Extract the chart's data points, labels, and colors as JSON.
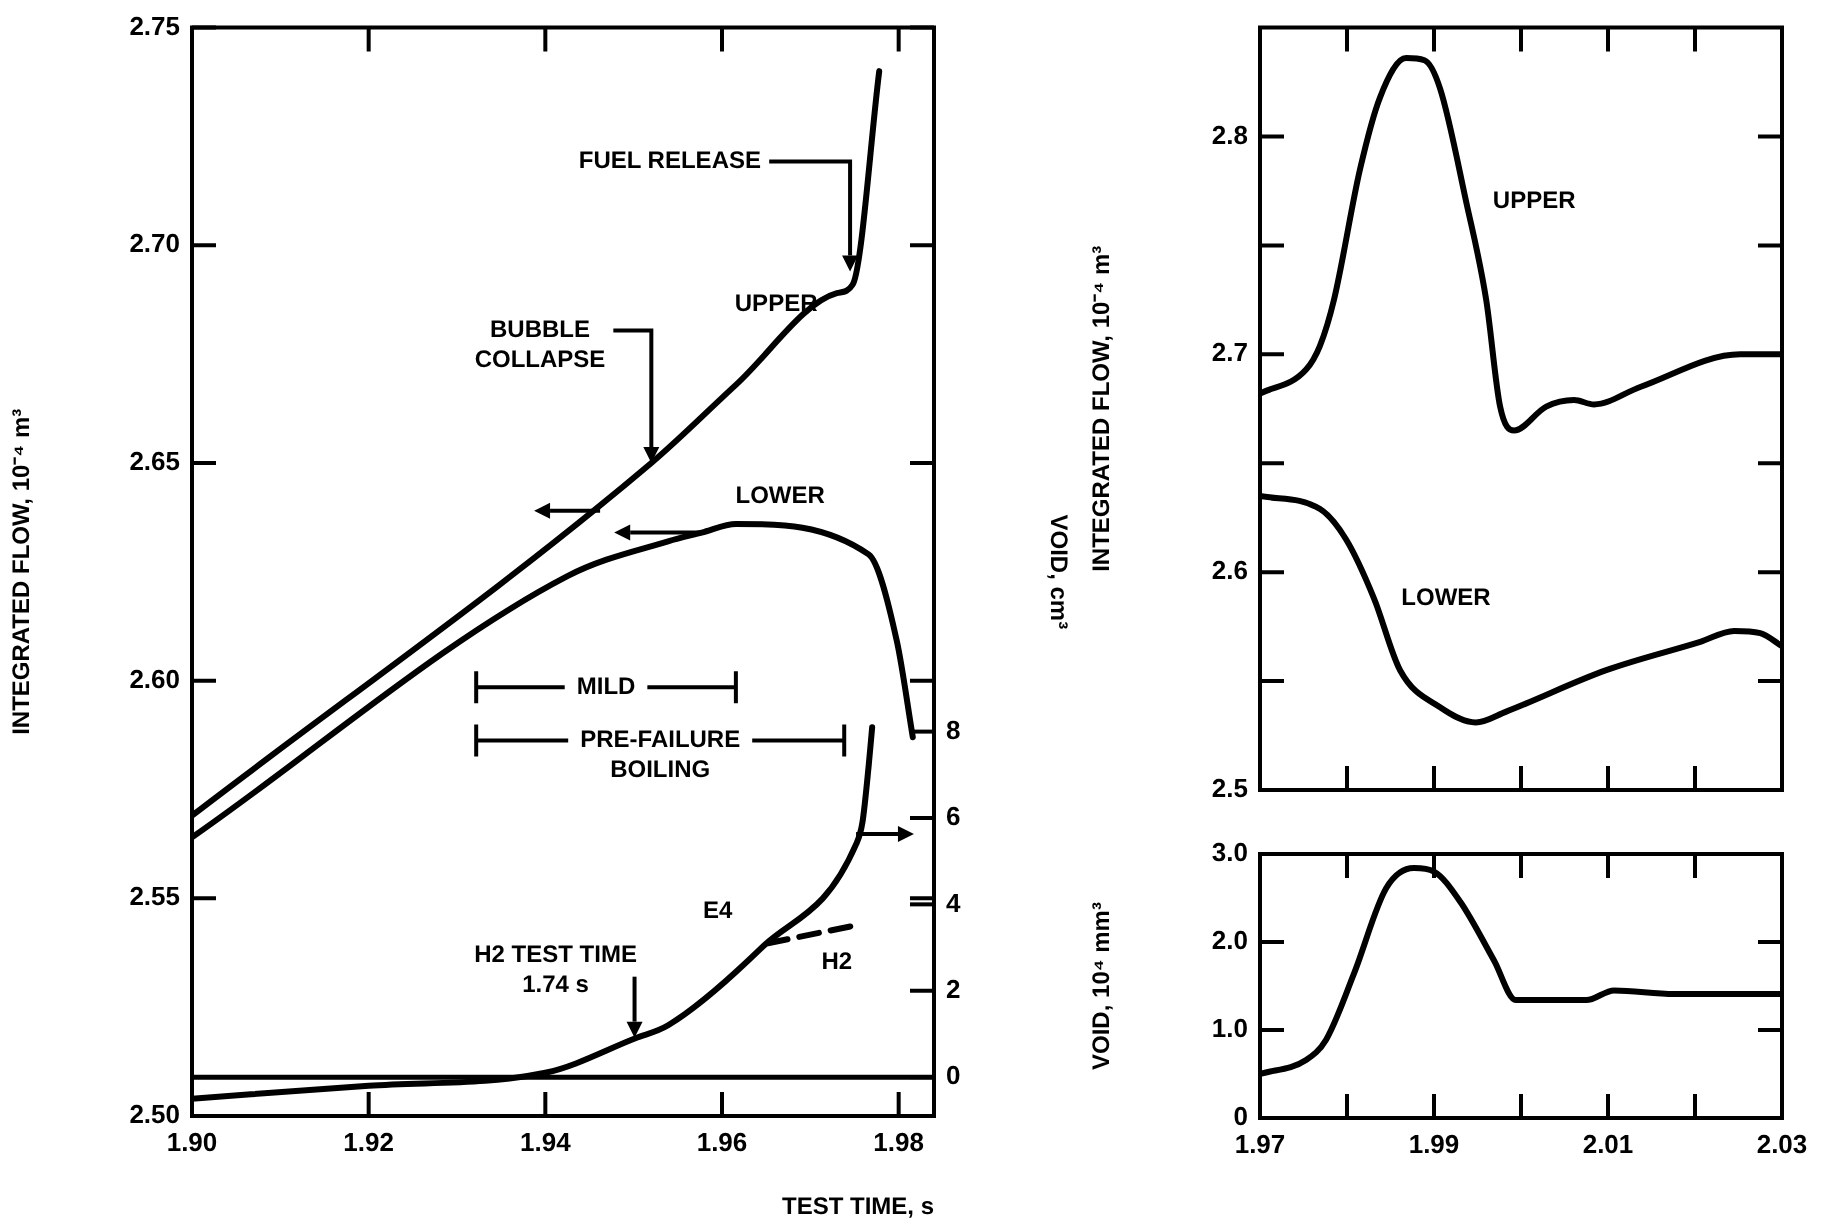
{
  "chart_data": [
    {
      "type": "line",
      "xlabel": "TEST TIME, s",
      "ylabel": "INTEGRATED FLOW, 10⁻⁴ m³",
      "y2label": "VOID, cm³",
      "xlim": [
        1.9,
        1.984
      ],
      "xticks": [
        {
          "value": 1.9,
          "label": "1.90"
        },
        1.92,
        1.94,
        1.96,
        1.98
      ],
      "ylim": [
        2.5,
        2.75
      ],
      "yticks": [
        {
          "value": 2.5,
          "label": "2.50"
        },
        2.55,
        {
          "value": 2.6,
          "label": "2.60"
        },
        2.65,
        {
          "value": 2.7,
          "label": "2.70"
        },
        2.75
      ],
      "y2lim": [
        -0.9,
        24.3
      ],
      "y2ticks": [
        0,
        2,
        4,
        6,
        8
      ],
      "series": [
        {
          "name": "UPPER",
          "color": "#000000",
          "x": [
            1.9,
            1.952,
            1.9616,
            1.973,
            1.9748,
            1.9778
          ],
          "values": [
            2.569,
            2.65,
            2.668,
            2.689,
            2.691,
            2.74
          ]
        },
        {
          "name": "LOWER",
          "color": "#000000",
          "x": [
            1.9,
            1.9425,
            1.9539,
            1.9577,
            1.9616,
            1.9766,
            1.9798,
            1.9816
          ],
          "values": [
            2.564,
            2.624,
            2.632,
            2.634,
            2.636,
            2.629,
            2.609,
            2.587
          ]
        },
        {
          "name": "E4",
          "color": "#000000",
          "axis": "y2",
          "x": [
            1.9,
            1.92,
            1.94,
            1.9502,
            1.9539,
            1.9645,
            1.9752,
            1.9759,
            1.9766,
            1.977
          ],
          "values": [
            -0.5,
            -0.2,
            0.1,
            0.9,
            1.2,
            3.0,
            5.4,
            5.9,
            7.2,
            8.1
          ]
        },
        {
          "name": "H2",
          "color": "#000000",
          "axis": "y2",
          "line_style": "dashed",
          "x": [
            1.9652,
            1.9748
          ],
          "values": [
            3.1,
            3.5
          ]
        }
      ],
      "ref_lines": [
        {
          "axis": "y2",
          "value": 0
        }
      ],
      "annotations": [
        {
          "text": "FUEL RELEASE",
          "x": 1.9745,
          "y": 2.694
        },
        {
          "text": "BUBBLE COLLAPSE",
          "x": 1.952,
          "y": 2.65
        },
        {
          "text": "H2 TEST TIME 1.74 s",
          "x": 1.9501,
          "y": 2.518
        },
        "MILD",
        "PRE-FAILURE BOILING"
      ]
    },
    {
      "type": "line",
      "ylabel": "INTEGRATED FLOW, 10⁻⁴ m³",
      "tick_labels": "y",
      "xlim": [
        1.97,
        2.03
      ],
      "xticks": [
        {
          "value": 1.97,
          "label": null
        },
        {
          "value": 1.98,
          "label": null
        },
        {
          "value": 1.99,
          "label": null
        },
        {
          "value": 2.0,
          "label": null
        },
        {
          "value": 2.01,
          "label": null
        },
        {
          "value": 2.02,
          "label": null
        },
        {
          "value": 2.03,
          "label": null
        }
      ],
      "ylim": [
        2.5,
        2.85
      ],
      "yticks": [
        2.5,
        {
          "value": 2.55,
          "label": null
        },
        2.6,
        {
          "value": 2.65,
          "label": null
        },
        2.7,
        {
          "value": 2.75,
          "label": null
        },
        2.8
      ],
      "series": [
        {
          "name": "UPPER",
          "color": "#000000",
          "x": [
            1.97,
            1.9753,
            1.9769,
            1.9785,
            1.9815,
            1.9838,
            1.9868,
            1.9889,
            1.9907,
            1.9937,
            1.996,
            1.9976,
            1.9992,
            2.0029,
            2.0061,
            2.0084,
            2.0137,
            2.0252,
            2.0298
          ],
          "values": [
            2.682,
            2.693,
            2.704,
            2.725,
            2.785,
            2.818,
            2.836,
            2.835,
            2.822,
            2.77,
            2.725,
            2.676,
            2.665,
            2.676,
            2.679,
            2.677,
            2.685,
            2.7,
            2.7
          ]
        },
        {
          "name": "LOWER",
          "color": "#000000",
          "x": [
            1.97,
            1.9769,
            1.9799,
            1.9831,
            1.9861,
            1.9907,
            1.9948,
            1.9983,
            2.0098,
            2.0206,
            2.0245,
            2.0275,
            2.03
          ],
          "values": [
            2.635,
            2.629,
            2.615,
            2.588,
            2.555,
            2.538,
            2.531,
            2.536,
            2.555,
            2.568,
            2.573,
            2.572,
            2.566
          ]
        }
      ]
    },
    {
      "type": "line",
      "ylabel": "VOID, 10⁴ mm³",
      "xlim": [
        1.97,
        2.03
      ],
      "xticks": [
        1.97,
        {
          "value": 1.98,
          "label": null
        },
        1.99,
        {
          "value": 2.0,
          "label": null
        },
        2.01,
        {
          "value": 2.02,
          "label": null
        },
        2.03
      ],
      "ylim": [
        0,
        3
      ],
      "yticks": [
        0,
        {
          "value": 1,
          "label": "1.0"
        },
        {
          "value": 2,
          "label": "2.0"
        },
        {
          "value": 3,
          "label": "3.0"
        }
      ],
      "series": [
        {
          "color": "#000000",
          "x": [
            1.97,
            1.9753,
            1.9776,
            1.9808,
            1.9845,
            1.9877,
            1.99,
            1.993,
            1.9969,
            1.9994,
            2.0015,
            2.0075,
            2.0107,
            2.0176,
            2.03
          ],
          "values": [
            0.5,
            0.66,
            0.89,
            1.64,
            2.61,
            2.84,
            2.8,
            2.46,
            1.79,
            1.34,
            1.34,
            1.34,
            1.45,
            1.41,
            1.41
          ]
        }
      ]
    }
  ]
}
